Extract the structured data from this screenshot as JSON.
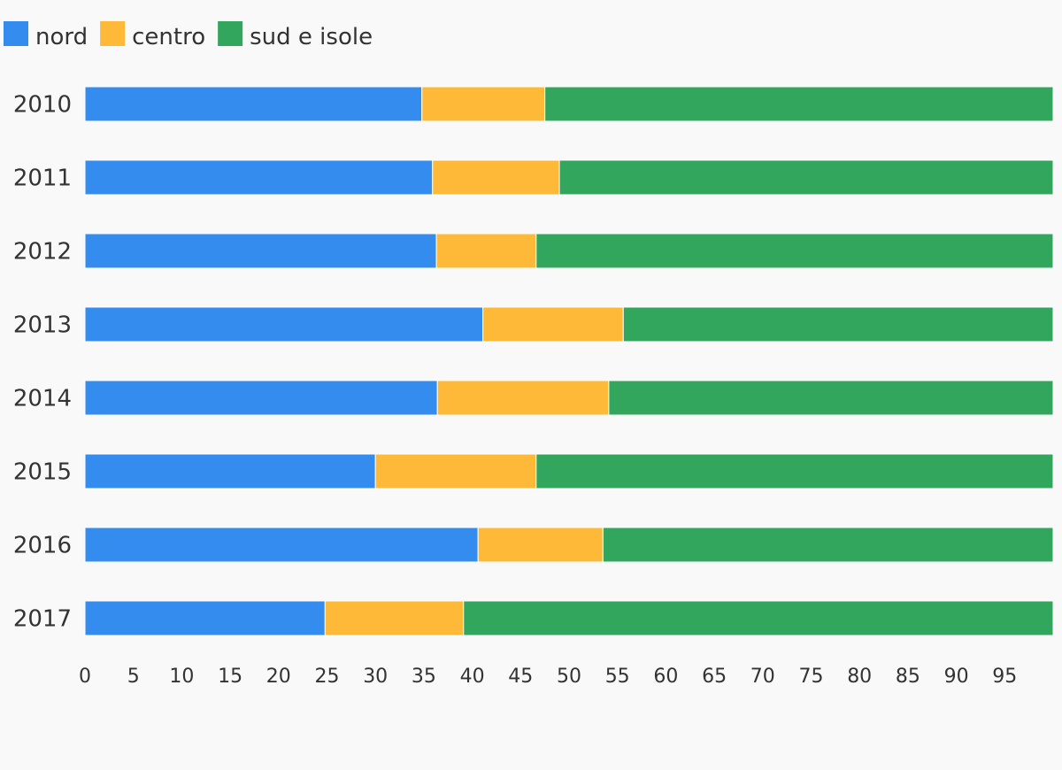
{
  "chart_data": {
    "type": "bar",
    "orientation": "horizontal",
    "stacked": true,
    "title": "",
    "xlabel": "",
    "ylabel": "",
    "xlim": [
      0,
      100
    ],
    "xticks": [
      "0",
      "5",
      "10",
      "15",
      "20",
      "25",
      "30",
      "35",
      "40",
      "45",
      "50",
      "55",
      "60",
      "65",
      "70",
      "75",
      "80",
      "85",
      "90",
      "95"
    ],
    "grid": false,
    "legend_position": "top-left",
    "categories": [
      "2010",
      "2011",
      "2012",
      "2013",
      "2014",
      "2015",
      "2016",
      "2017"
    ],
    "series": [
      {
        "name": "nord",
        "color": "#348cee",
        "values": [
          34.8,
          35.9,
          36.3,
          41.1,
          36.4,
          30.0,
          40.6,
          24.8
        ]
      },
      {
        "name": "centro",
        "color": "#feb938",
        "values": [
          12.7,
          13.1,
          10.3,
          14.5,
          17.7,
          16.6,
          12.9,
          14.3
        ]
      },
      {
        "name": "sud e isole",
        "color": "#33a65d",
        "values": [
          52.5,
          51.0,
          53.4,
          44.4,
          45.9,
          53.4,
          46.5,
          60.9
        ]
      }
    ]
  }
}
